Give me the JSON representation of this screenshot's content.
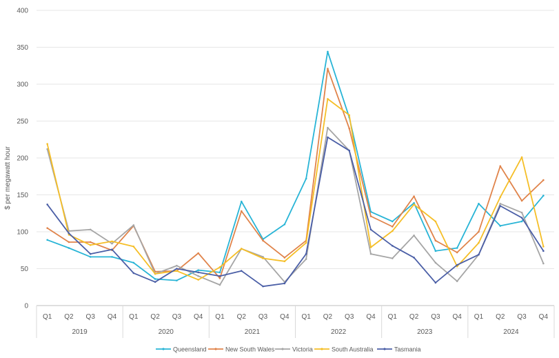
{
  "chart_data": {
    "type": "line",
    "title": "",
    "xlabel": "",
    "ylabel": "$ per megawatt hour",
    "ylim": [
      0,
      400
    ],
    "yticks": [
      0,
      50,
      100,
      150,
      200,
      250,
      300,
      350,
      400
    ],
    "grid": true,
    "legend_position": "bottom",
    "categories": [
      "Q1",
      "Q2",
      "Q3",
      "Q4",
      "Q1",
      "Q2",
      "Q3",
      "Q4",
      "Q1",
      "Q2",
      "Q3",
      "Q4",
      "Q1",
      "Q2",
      "Q3",
      "Q4",
      "Q1",
      "Q2",
      "Q3",
      "Q4",
      "Q1",
      "Q2",
      "Q3",
      "Q4"
    ],
    "years": [
      "2019",
      "2020",
      "2021",
      "2022",
      "2023",
      "2024"
    ],
    "series": [
      {
        "name": "Queensland",
        "color": "#27B4D6",
        "values": [
          89,
          78,
          66,
          66,
          58,
          36,
          34,
          48,
          45,
          141,
          90,
          110,
          172,
          344,
          255,
          127,
          114,
          139,
          74,
          78,
          138,
          108,
          114,
          149
        ]
      },
      {
        "name": "New South Wales",
        "color": "#E0834A",
        "values": [
          105,
          86,
          86,
          75,
          108,
          46,
          47,
          71,
          37,
          128,
          88,
          65,
          88,
          321,
          240,
          121,
          107,
          148,
          88,
          72,
          100,
          189,
          142,
          170
        ]
      },
      {
        "name": "Victoria",
        "color": "#A5A5A5",
        "values": [
          212,
          101,
          103,
          84,
          109,
          43,
          54,
          40,
          28,
          77,
          66,
          32,
          63,
          241,
          210,
          70,
          64,
          95,
          58,
          33,
          69,
          138,
          126,
          57
        ]
      },
      {
        "name": "South Australia",
        "color": "#F5BE26",
        "values": [
          219,
          96,
          82,
          87,
          80,
          43,
          47,
          35,
          52,
          77,
          64,
          60,
          85,
          280,
          258,
          79,
          101,
          137,
          114,
          53,
          85,
          147,
          201,
          80
        ]
      },
      {
        "name": "Tasmania",
        "color": "#4A5EA6",
        "values": [
          137,
          98,
          70,
          76,
          44,
          32,
          50,
          45,
          40,
          47,
          26,
          30,
          70,
          228,
          210,
          103,
          81,
          65,
          31,
          55,
          69,
          135,
          119,
          74
        ]
      }
    ]
  }
}
